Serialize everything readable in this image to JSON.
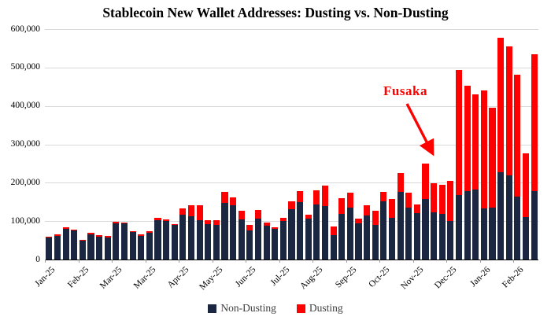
{
  "title": "Stablecoin New Wallet Addresses: Dusting vs. Non-Dusting",
  "annotation": {
    "label": "Fusaka"
  },
  "legend": [
    {
      "label": "Non-Dusting",
      "color": "#1b2740"
    },
    {
      "label": "Dusting",
      "color": "#fe0000"
    }
  ],
  "colors": {
    "background": "#ffffff",
    "non_dusting": "#1b2740",
    "dusting": "#fe0000",
    "gridline": "#d9d9d9",
    "axis": "#000000",
    "annotation": "#fe0000"
  },
  "chart_data": {
    "type": "bar",
    "stacked": true,
    "title": "Stablecoin New Wallet Addresses: Dusting vs. Non-Dusting",
    "xlabel": "",
    "ylabel": "",
    "ylim": [
      0,
      600000
    ],
    "y_ticks": [
      0,
      100000,
      200000,
      300000,
      400000,
      500000,
      600000
    ],
    "y_tick_labels": [
      "0",
      "100,000",
      "200,000",
      "300,000",
      "400,000",
      "500,000",
      "600,000"
    ],
    "grid": true,
    "legend_position": "bottom-center",
    "frequency": "weekly",
    "x_tick_every": 4,
    "x_tick_labels": [
      "Jan-25",
      "Feb-25",
      "Mar-25",
      "Mar-25",
      "Apr-25",
      "May-25",
      "Jun-25",
      "Jul-25",
      "Aug-25",
      "Sep-25",
      "Oct-25",
      "Nov-25",
      "Dec-25",
      "Jan-26",
      "Feb-26"
    ],
    "annotation_target_bar_index": 45,
    "series": [
      {
        "name": "Non-Dusting",
        "color": "#1b2740",
        "values": [
          57000,
          62000,
          79000,
          75000,
          50000,
          66000,
          59000,
          58000,
          95000,
          94000,
          71000,
          62000,
          70000,
          103000,
          101000,
          90000,
          117000,
          112000,
          102000,
          92000,
          90000,
          147000,
          141000,
          105000,
          75000,
          107000,
          88000,
          80000,
          100000,
          131000,
          150000,
          107000,
          143000,
          140000,
          64000,
          119000,
          135000,
          95000,
          114000,
          90000,
          152000,
          108000,
          177000,
          136000,
          121000,
          157000,
          123000,
          119000,
          100000,
          167000,
          179000,
          183000,
          134000,
          136000,
          227000,
          220000,
          164000,
          110000,
          179000
        ]
      },
      {
        "name": "Dusting",
        "color": "#fe0000",
        "values": [
          3000,
          3000,
          4000,
          3000,
          2000,
          3000,
          4000,
          3000,
          3000,
          3000,
          3000,
          3000,
          4000,
          5000,
          4000,
          3000,
          16000,
          30000,
          39000,
          11000,
          12000,
          30000,
          21000,
          21000,
          15000,
          22000,
          9000,
          4000,
          9000,
          20000,
          28000,
          9000,
          38000,
          52000,
          22000,
          41000,
          39000,
          11000,
          27000,
          37000,
          25000,
          49000,
          48000,
          39000,
          22000,
          92000,
          76000,
          76000,
          105000,
          326000,
          274000,
          248000,
          306000,
          260000,
          350000,
          335000,
          317000,
          167000,
          356000
        ]
      }
    ]
  }
}
